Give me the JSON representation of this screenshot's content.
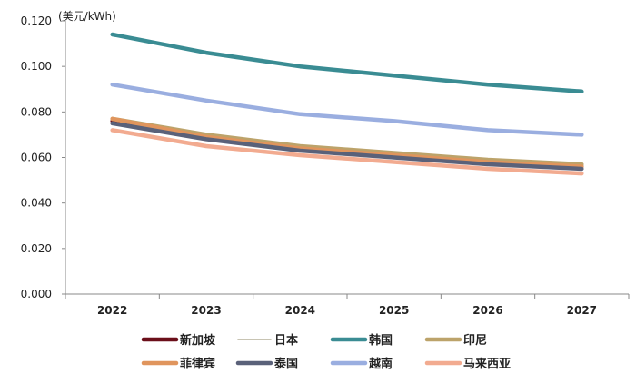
{
  "chart_data": {
    "type": "line",
    "unit_label": "(美元/kWh)",
    "x": [
      "2022",
      "2023",
      "2024",
      "2025",
      "2026",
      "2027"
    ],
    "yticks": [
      "0.000",
      "0.020",
      "0.040",
      "0.060",
      "0.080",
      "0.100",
      "0.120"
    ],
    "ylim": [
      0,
      0.12
    ],
    "series": [
      {
        "name": "新加坡",
        "color": "#6b0f1a",
        "values": [
          0.076,
          0.069,
          0.064,
          0.061,
          0.058,
          0.056
        ]
      },
      {
        "name": "日本",
        "color": "#b5b09a",
        "values": [
          0.077,
          0.07,
          0.065,
          0.062,
          0.059,
          0.057
        ]
      },
      {
        "name": "韩国",
        "color": "#3a8c93",
        "values": [
          0.114,
          0.106,
          0.1,
          0.096,
          0.092,
          0.089
        ]
      },
      {
        "name": "印尼",
        "color": "#bca36a",
        "values": [
          0.077,
          0.07,
          0.065,
          0.062,
          0.059,
          0.057
        ]
      },
      {
        "name": "菲律宾",
        "color": "#e0955d",
        "values": [
          0.077,
          0.069,
          0.064,
          0.061,
          0.058,
          0.056
        ]
      },
      {
        "name": "泰国",
        "color": "#5a6179",
        "values": [
          0.075,
          0.068,
          0.063,
          0.06,
          0.057,
          0.055
        ]
      },
      {
        "name": "越南",
        "color": "#9aaee0",
        "values": [
          0.092,
          0.085,
          0.079,
          0.076,
          0.072,
          0.07
        ]
      },
      {
        "name": "马来西亚",
        "color": "#f2ab90",
        "values": [
          0.072,
          0.065,
          0.061,
          0.058,
          0.055,
          0.053
        ]
      }
    ]
  }
}
